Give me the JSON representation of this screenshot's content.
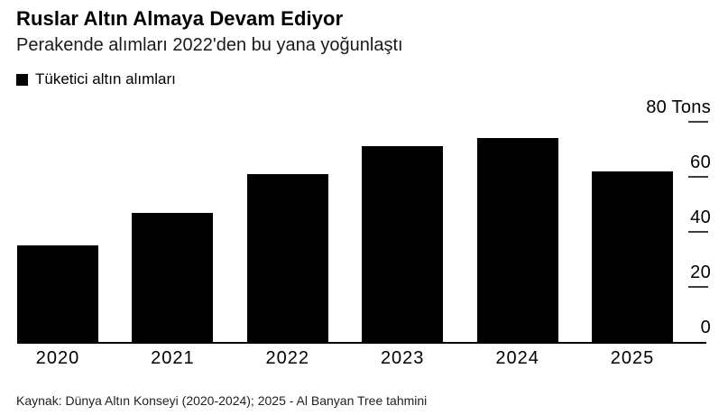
{
  "header": {
    "title": "Ruslar Altın Almaya Devam Ediyor",
    "subtitle": "Perakende alımları 2022'den bu yana yoğunlaştı"
  },
  "legend": {
    "label": "Tüketici altın alımları",
    "swatch_color": "#000000"
  },
  "source": "Kaynak: Dünya Altın Konseyi (2020-2024); 2025 - Al Banyan Tree tahmini",
  "colors": {
    "bar": "#000000",
    "axis_line": "#000000",
    "tick_dash": "#3d3d3d",
    "text": "#000000",
    "background": "#ffffff"
  },
  "chart_data": {
    "type": "bar",
    "title": "Ruslar Altın Almaya Devam Ediyor",
    "subtitle": "Perakende alımları 2022'den bu yana yoğunlaştı",
    "categories": [
      "2020",
      "2021",
      "2022",
      "2023",
      "2024",
      "2025"
    ],
    "series": [
      {
        "name": "Tüketici altın alımları",
        "values": [
          35,
          47,
          61,
          71,
          74,
          62
        ]
      }
    ],
    "xlabel": "",
    "ylabel": "",
    "unit": "Tons",
    "y_axis_top_label": "80 Tons",
    "y_ticks": [
      0,
      20,
      40,
      60,
      80
    ],
    "ylim": [
      0,
      80
    ],
    "y_axis_side": "right",
    "grid": false,
    "legend_position": "top-left",
    "footnote": "Kaynak: Dünya Altın Konseyi (2020-2024); 2025 - Al Banyan Tree tahmini"
  }
}
